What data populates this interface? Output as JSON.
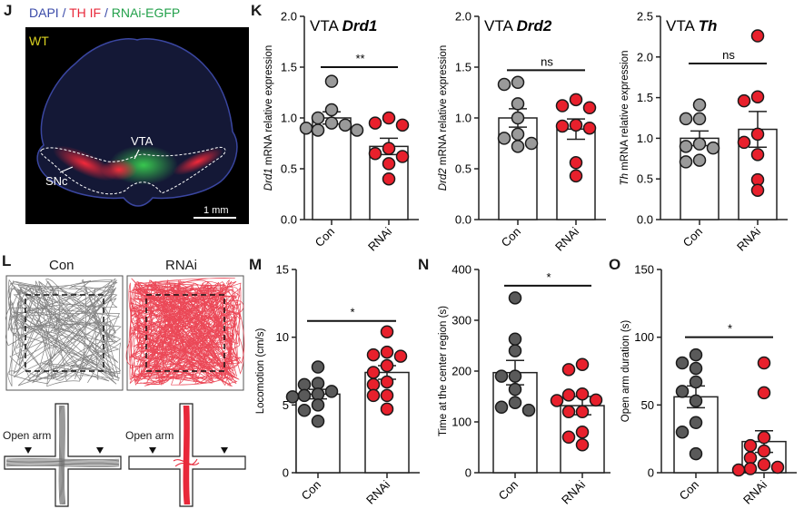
{
  "panels": {
    "J": {
      "letter": "J",
      "legend": [
        {
          "text": "DAPI",
          "color": "#3a4aa8"
        },
        {
          "text": " / ",
          "color": "#3a4aa8"
        },
        {
          "text": "TH IF",
          "color": "#e8283a"
        },
        {
          "text": " / ",
          "color": "#3a4aa8"
        },
        {
          "text": "RNAi-EGFP",
          "color": "#22a04a"
        }
      ],
      "genotype_label": "WT",
      "genotype_color": "#d8d020",
      "region_labels": [
        "VTA",
        "SNc"
      ],
      "scale_bar_label": "1 mm"
    },
    "K": {
      "letter": "K"
    },
    "L": {
      "letter": "L",
      "open_field_labels": [
        "Con",
        "RNAi"
      ],
      "maze_label": "Open arm",
      "con_color": "#6e6e6e",
      "rnai_color": "#e8283a"
    },
    "M": {
      "letter": "M"
    },
    "N": {
      "letter": "N"
    },
    "O": {
      "letter": "O"
    }
  },
  "colors": {
    "con_dot_top": "#9a9a9a",
    "con_dot_bottom": "#5a5a5a",
    "rnai_dot": "#e8202c"
  },
  "chart_data": [
    {
      "id": "drd1",
      "type": "bar",
      "title_prefix": "VTA ",
      "title_gene": "Drd1",
      "ylabel_italic": "Drd1",
      "ylabel_rest": " mRNA relative expression",
      "categories": [
        "Con",
        "RNAi"
      ],
      "ylim": [
        0,
        2.0
      ],
      "yticks": [
        "0.0",
        "0.5",
        "1.0",
        "1.5",
        "2.0"
      ],
      "ytick_values": [
        0,
        0.5,
        1.0,
        1.5,
        2.0
      ],
      "means": [
        1.0,
        0.72
      ],
      "sem": [
        0.06,
        0.08
      ],
      "points": [
        [
          1.36,
          1.08,
          1.0,
          0.95,
          0.93,
          0.9,
          0.88,
          0.88
        ],
        [
          1.0,
          0.95,
          0.93,
          0.7,
          0.65,
          0.62,
          0.55,
          0.4
        ]
      ],
      "significance": "**",
      "sig_y": 1.5
    },
    {
      "id": "drd2",
      "type": "bar",
      "title_prefix": "VTA ",
      "title_gene": "Drd2",
      "ylabel_italic": "Drd2",
      "ylabel_rest": " mRNA relative expression",
      "categories": [
        "Con",
        "RNAi"
      ],
      "ylim": [
        0,
        2.0
      ],
      "yticks": [
        "0.0",
        "0.5",
        "1.0",
        "1.5",
        "2.0"
      ],
      "ytick_values": [
        0,
        0.5,
        1.0,
        1.5,
        2.0
      ],
      "means": [
        1.0,
        0.89
      ],
      "sem": [
        0.09,
        0.1
      ],
      "points": [
        [
          1.35,
          1.33,
          1.14,
          1.0,
          0.84,
          0.8,
          0.75,
          0.72
        ],
        [
          1.18,
          1.12,
          1.1,
          0.93,
          0.92,
          0.9,
          0.56,
          0.43
        ]
      ],
      "significance": "ns",
      "sig_y": 1.47
    },
    {
      "id": "th",
      "type": "bar",
      "title_prefix": "VTA ",
      "title_gene": "Th",
      "ylabel_italic": "Th",
      "ylabel_rest": " mRNA relative expression",
      "categories": [
        "Con",
        "RNAi"
      ],
      "ylim": [
        0,
        2.5
      ],
      "yticks": [
        "0.0",
        "0.5",
        "1.0",
        "1.5",
        "2.0",
        "2.5"
      ],
      "ytick_values": [
        0,
        0.5,
        1.0,
        1.5,
        2.0,
        2.5
      ],
      "means": [
        1.0,
        1.11
      ],
      "sem": [
        0.09,
        0.22
      ],
      "points": [
        [
          1.41,
          1.24,
          1.24,
          0.93,
          0.9,
          0.88,
          0.73,
          0.71
        ],
        [
          2.26,
          1.51,
          1.46,
          1.05,
          0.95,
          0.8,
          0.49,
          0.36
        ]
      ],
      "significance": "ns",
      "sig_y": 1.92
    },
    {
      "id": "locomotion",
      "type": "bar",
      "title_prefix": "",
      "title_gene": "",
      "ylabel_italic": "",
      "ylabel_rest": "Locomotion (cm/s)",
      "categories": [
        "Con",
        "RNAi"
      ],
      "ylim": [
        0,
        15
      ],
      "yticks": [
        "0",
        "5",
        "10",
        "15"
      ],
      "ytick_values": [
        0,
        5,
        10,
        15
      ],
      "means": [
        5.8,
        7.4
      ],
      "sem": [
        0.35,
        0.5
      ],
      "points": [
        [
          7.8,
          6.6,
          6.5,
          6.0,
          5.8,
          5.7,
          5.6,
          5.0,
          4.6,
          3.8
        ],
        [
          10.4,
          8.9,
          8.7,
          8.6,
          7.9,
          7.4,
          6.7,
          6.5,
          5.7,
          5.7,
          4.7
        ]
      ],
      "significance": "*",
      "sig_y": 11.2
    },
    {
      "id": "center",
      "type": "bar",
      "title_prefix": "",
      "title_gene": "",
      "ylabel_italic": "",
      "ylabel_rest": "Time at the center region (s)",
      "categories": [
        "Con",
        "RNAi"
      ],
      "ylim": [
        0,
        400
      ],
      "yticks": [
        "0",
        "100",
        "200",
        "300",
        "400"
      ],
      "ytick_values": [
        0,
        100,
        200,
        300,
        400
      ],
      "means": [
        197,
        132
      ],
      "sem": [
        24,
        18
      ],
      "points": [
        [
          344,
          263,
          240,
          190,
          190,
          164,
          138,
          129,
          123
        ],
        [
          213,
          203,
          155,
          153,
          143,
          142,
          120,
          120,
          80,
          70,
          55
        ]
      ],
      "significance": "*",
      "sig_y": 368
    },
    {
      "id": "openarm",
      "type": "bar",
      "title_prefix": "",
      "title_gene": "",
      "ylabel_italic": "",
      "ylabel_rest": "Open arm duration (s)",
      "categories": [
        "Con",
        "RNAi"
      ],
      "ylim": [
        0,
        150
      ],
      "yticks": [
        "0",
        "50",
        "100",
        "150"
      ],
      "ytick_values": [
        0,
        50,
        100,
        150
      ],
      "means": [
        56,
        23
      ],
      "sem": [
        8,
        8
      ],
      "points": [
        [
          87,
          81,
          77,
          67,
          60,
          53,
          37,
          30,
          14
        ],
        [
          81,
          59,
          26,
          20,
          16,
          11,
          6,
          4,
          3,
          2
        ]
      ],
      "significance": "*",
      "sig_y": 100
    }
  ]
}
